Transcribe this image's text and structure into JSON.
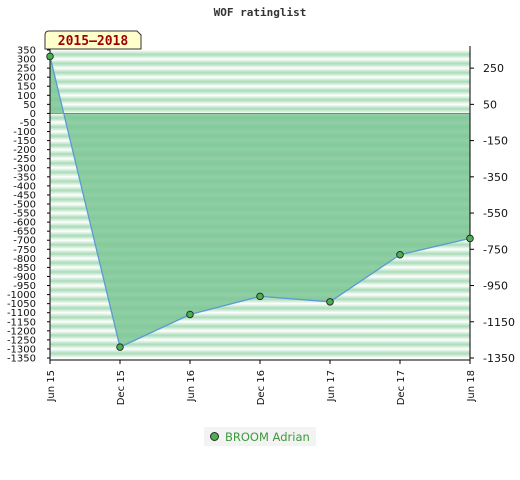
{
  "chart_data": {
    "type": "area",
    "title": "WOF ratinglist",
    "badge": "2015–2018",
    "categories": [
      "Jun 15",
      "Dec 15",
      "Jun 16",
      "Dec 16",
      "Jun 17",
      "Dec 17",
      "Jun 18"
    ],
    "series": [
      {
        "name": "BROOM Adrian",
        "values": [
          315,
          -1290,
          -1110,
          -1010,
          -1040,
          -780,
          -690
        ]
      }
    ],
    "left_axis": {
      "ylim": [
        -1350,
        350
      ],
      "ticks": [
        350,
        300,
        250,
        200,
        150,
        100,
        50,
        0,
        -50,
        -100,
        -150,
        -200,
        -250,
        -300,
        -350,
        -400,
        -450,
        -500,
        -550,
        -600,
        -650,
        -700,
        -750,
        -800,
        -850,
        -900,
        -950,
        -1000,
        -1050,
        -1100,
        -1150,
        -1200,
        -1250,
        -1300,
        -1350
      ]
    },
    "right_axis": {
      "ticks": [
        250,
        50,
        -150,
        -350,
        -550,
        -750,
        -950,
        -1150,
        -1350
      ]
    },
    "grid": true,
    "legend_placement": "bottom-center",
    "colors": {
      "area": "#7cc795",
      "line": "#5b9bd5",
      "marker": "#4caf50",
      "badge_bg": "#ffffcc",
      "badge_text": "#a00000",
      "band_light": "#ffffff",
      "band_dark": "#8fcfa2"
    }
  }
}
